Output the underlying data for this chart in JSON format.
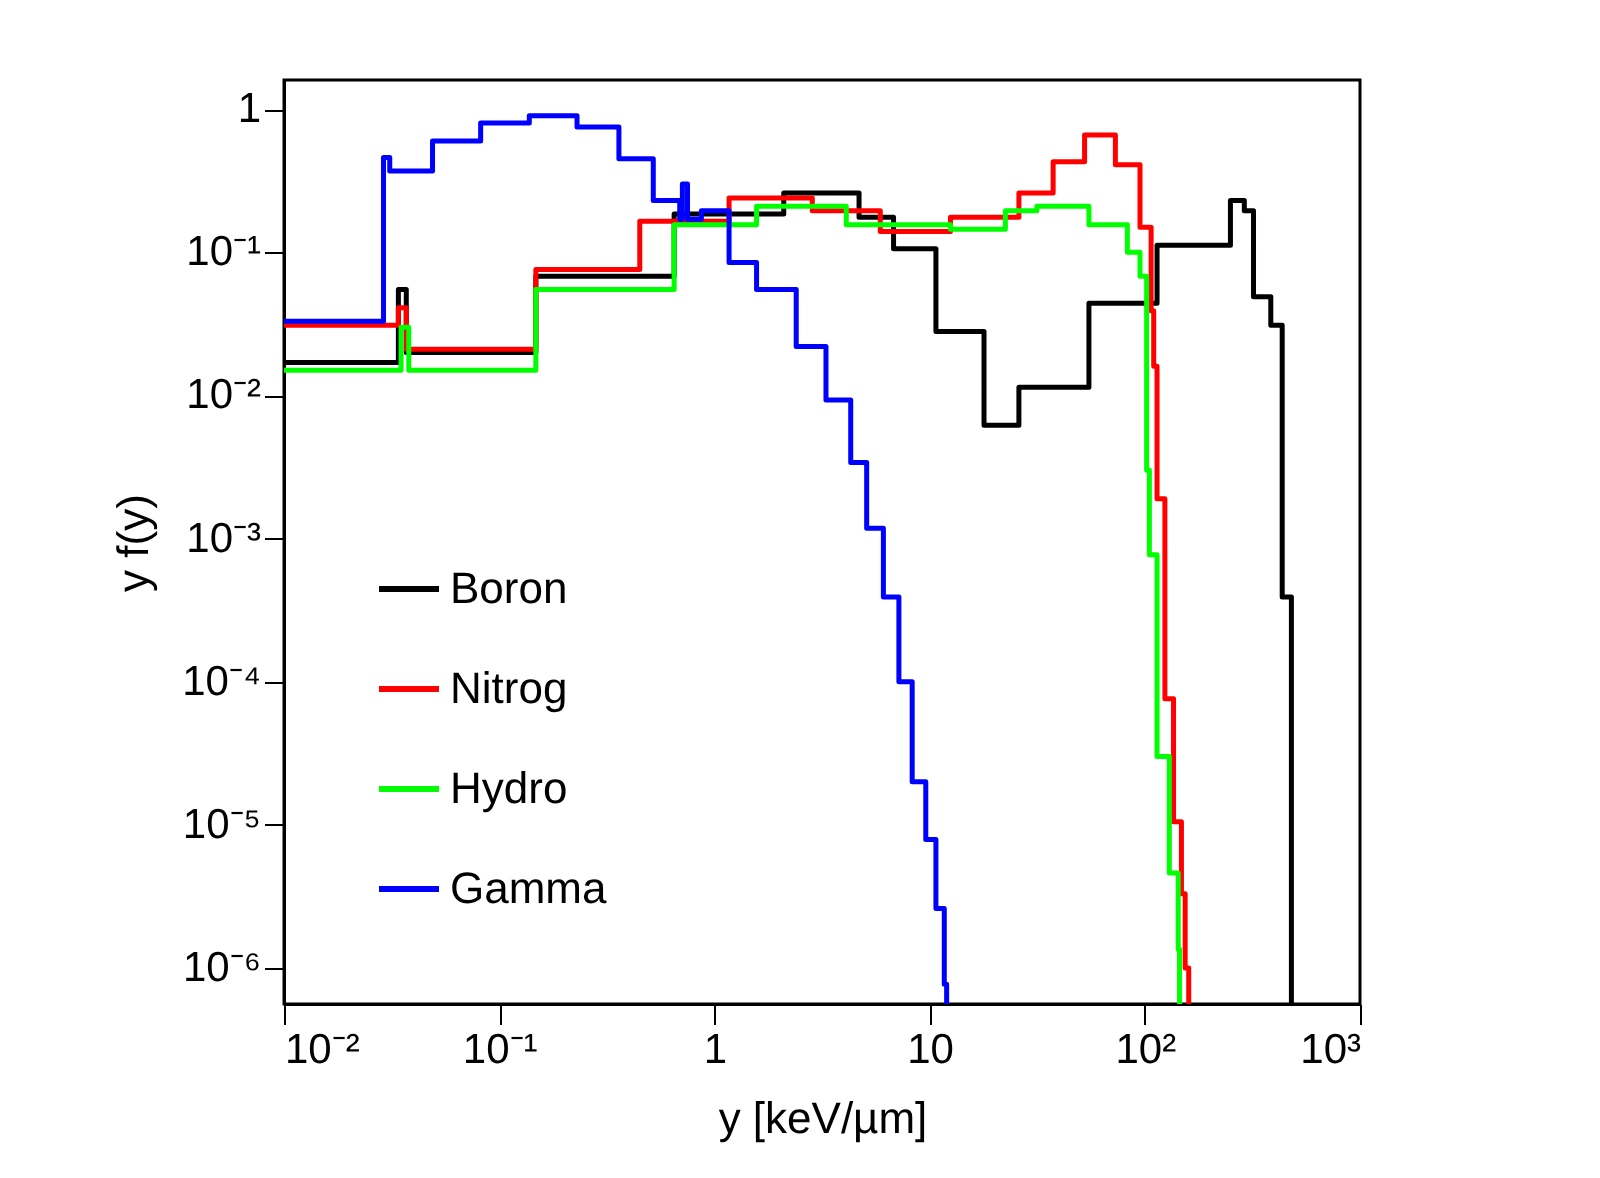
{
  "chart_data": {
    "type": "step",
    "xlabel": "y [keV/µm]",
    "ylabel": "y f(y)",
    "log": "xy",
    "grid": false,
    "legend": "bottom left",
    "line_style": "solid",
    "marker": "none",
    "xlim": [
      0.01,
      1000
    ],
    "xticks": [
      {
        "value": 0.01,
        "label": "10⁻²"
      },
      {
        "value": 0.1,
        "label": "10⁻¹"
      },
      {
        "value": 1,
        "label": "1"
      },
      {
        "value": 10,
        "label": "10"
      },
      {
        "value": 100,
        "label": "10²"
      },
      {
        "value": 1000,
        "label": "10³"
      }
    ],
    "ylim": [
      5.6e-07,
      1.6
    ],
    "yticks": [
      {
        "value": 1e-06,
        "label": "10⁻⁶"
      },
      {
        "value": 1e-05,
        "label": "10⁻⁵"
      },
      {
        "value": 0.0001,
        "label": "10⁻⁴"
      },
      {
        "value": 0.001,
        "label": "10⁻³"
      },
      {
        "value": 0.01,
        "label": "10⁻²"
      },
      {
        "value": 0.1,
        "label": "10⁻¹"
      },
      {
        "value": 1,
        "label": "1"
      }
    ],
    "series": [
      {
        "name": "Boron",
        "color": "#000000",
        "x": [
          0.01,
          0.034,
          0.037,
          0.038,
          0.148,
          0.65,
          2.1,
          4.7,
          6.8,
          10.7,
          17.9,
          26,
          55,
          114,
          250,
          290,
          320,
          385,
          435,
          475,
          480
        ],
        "values": [
          0.017,
          0.055,
          0.02,
          0.02,
          0.068,
          0.185,
          0.26,
          0.176,
          0.106,
          0.028,
          0.0062,
          0.0114,
          0.044,
          0.112,
          0.23,
          0.195,
          0.049,
          0.031,
          0.00039,
          0.00039,
          5.6e-07
        ]
      },
      {
        "name": "Nitrog",
        "color": "#ff0000",
        "x": [
          0.01,
          0.034,
          0.037,
          0.038,
          0.148,
          0.45,
          1.17,
          2.85,
          5.9,
          12.5,
          26,
          37.5,
          52.5,
          73,
          95,
          107,
          110,
          114,
          124,
          136,
          148,
          154,
          160
        ],
        "values": [
          0.031,
          0.041,
          0.021,
          0.021,
          0.076,
          0.165,
          0.24,
          0.195,
          0.14,
          0.176,
          0.26,
          0.43,
          0.66,
          0.41,
          0.15,
          0.039,
          0.016,
          0.0019,
          7.6e-05,
          1.05e-05,
          3.3e-06,
          1e-06,
          5.6e-07
        ]
      },
      {
        "name": "Hydro",
        "color": "#00ff00",
        "x": [
          0.01,
          0.035,
          0.038,
          0.039,
          0.148,
          0.65,
          1.57,
          4.1,
          12.5,
          22.5,
          31.5,
          55,
          83,
          95,
          102,
          105,
          114,
          130,
          143,
          145
        ],
        "values": [
          0.015,
          0.03,
          0.015,
          0.015,
          0.055,
          0.156,
          0.21,
          0.156,
          0.145,
          0.195,
          0.21,
          0.156,
          0.1,
          0.068,
          0.003,
          0.00077,
          3e-05,
          4.6e-06,
          1.35e-06,
          5.6e-07
        ]
      },
      {
        "name": "Gamma",
        "color": "#0000ff",
        "x": [
          0.01,
          0.029,
          0.031,
          0.049,
          0.082,
          0.138,
          0.23,
          0.36,
          0.52,
          0.69,
          0.71,
          0.75,
          0.87,
          1.17,
          1.57,
          2.4,
          3.3,
          4.3,
          5.1,
          6.1,
          7.2,
          8.3,
          9.6,
          10.7,
          11.7,
          12
        ],
        "values": [
          0.033,
          0.46,
          0.37,
          0.6,
          0.8,
          0.9,
          0.75,
          0.45,
          0.23,
          0.17,
          0.3,
          0.17,
          0.195,
          0.085,
          0.055,
          0.022,
          0.0093,
          0.0034,
          0.00118,
          0.00039,
          0.0001,
          2e-05,
          7.9e-06,
          2.6e-06,
          7.7e-07,
          5.6e-07
        ]
      }
    ]
  }
}
